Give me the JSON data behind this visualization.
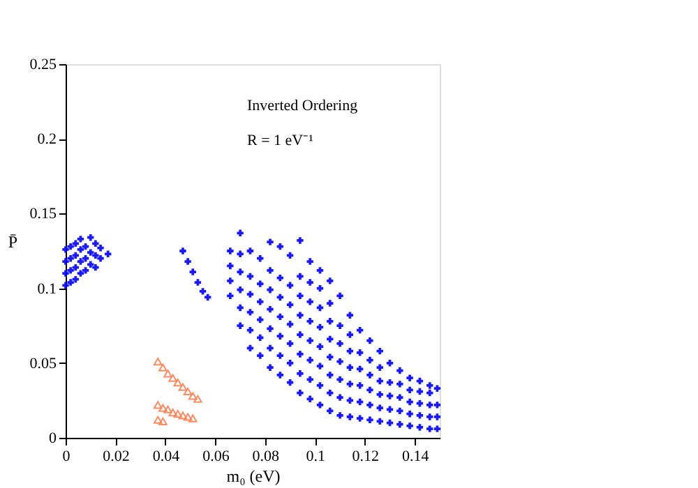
{
  "chart_data": {
    "type": "scatter",
    "xlabel": "m₀ (eV)",
    "ylabel": "P̄",
    "xlim": [
      0,
      0.15
    ],
    "ylim": [
      0,
      0.25
    ],
    "xticks": [
      0,
      0.02,
      0.04,
      0.06,
      0.08,
      0.1,
      0.12,
      0.14
    ],
    "yticks": [
      0,
      0.05,
      0.1,
      0.15,
      0.2,
      0.25
    ],
    "grid": false,
    "annotations": [
      "Inverted Ordering",
      "R = 1 eV⁻¹"
    ],
    "series": [
      {
        "color": "#0000ff",
        "marker": "cross",
        "x": [
          0,
          0,
          0,
          0,
          0.002,
          0.002,
          0.002,
          0.002,
          0.004,
          0.004,
          0.004,
          0.004,
          0.006,
          0.006,
          0.006,
          0.006,
          0.008,
          0.008,
          0.008,
          0.01,
          0.01,
          0.01,
          0.012,
          0.012,
          0.012,
          0.014,
          0.014,
          0.017,
          0.047,
          0.049,
          0.051,
          0.053,
          0.055,
          0.057,
          0.066,
          0.066,
          0.066,
          0.066,
          0.07,
          0.07,
          0.07,
          0.07,
          0.07,
          0.07,
          0.074,
          0.074,
          0.074,
          0.074,
          0.074,
          0.074,
          0.078,
          0.078,
          0.078,
          0.078,
          0.078,
          0.078,
          0.082,
          0.082,
          0.082,
          0.082,
          0.082,
          0.082,
          0.082,
          0.086,
          0.086,
          0.086,
          0.086,
          0.086,
          0.086,
          0.086,
          0.09,
          0.09,
          0.09,
          0.09,
          0.09,
          0.09,
          0.09,
          0.094,
          0.094,
          0.094,
          0.094,
          0.094,
          0.094,
          0.094,
          0.094,
          0.098,
          0.098,
          0.098,
          0.098,
          0.098,
          0.098,
          0.098,
          0.098,
          0.102,
          0.102,
          0.102,
          0.102,
          0.102,
          0.102,
          0.102,
          0.102,
          0.106,
          0.106,
          0.106,
          0.106,
          0.106,
          0.106,
          0.106,
          0.106,
          0.11,
          0.11,
          0.11,
          0.11,
          0.11,
          0.11,
          0.11,
          0.114,
          0.114,
          0.114,
          0.114,
          0.114,
          0.114,
          0.114,
          0.118,
          0.118,
          0.118,
          0.118,
          0.118,
          0.118,
          0.122,
          0.122,
          0.122,
          0.122,
          0.122,
          0.122,
          0.126,
          0.126,
          0.126,
          0.126,
          0.126,
          0.126,
          0.13,
          0.13,
          0.13,
          0.13,
          0.13,
          0.134,
          0.134,
          0.134,
          0.134,
          0.134,
          0.138,
          0.138,
          0.138,
          0.138,
          0.138,
          0.142,
          0.142,
          0.142,
          0.142,
          0.142,
          0.146,
          0.146,
          0.146,
          0.146,
          0.146,
          0.149,
          0.149,
          0.149,
          0.149
        ],
        "values": [
          0.102,
          0.11,
          0.118,
          0.126,
          0.104,
          0.112,
          0.12,
          0.128,
          0.106,
          0.114,
          0.122,
          0.13,
          0.11,
          0.118,
          0.126,
          0.133,
          0.112,
          0.12,
          0.128,
          0.116,
          0.124,
          0.134,
          0.114,
          0.122,
          0.13,
          0.12,
          0.127,
          0.123,
          0.125,
          0.118,
          0.111,
          0.104,
          0.098,
          0.094,
          0.095,
          0.105,
          0.115,
          0.125,
          0.075,
          0.087,
          0.099,
          0.111,
          0.123,
          0.137,
          0.06,
          0.072,
          0.084,
          0.096,
          0.108,
          0.125,
          0.055,
          0.067,
          0.079,
          0.091,
          0.103,
          0.12,
          0.047,
          0.06,
          0.073,
          0.086,
          0.099,
          0.112,
          0.131,
          0.042,
          0.055,
          0.068,
          0.081,
          0.094,
          0.107,
          0.128,
          0.037,
          0.05,
          0.063,
          0.076,
          0.089,
          0.102,
          0.122,
          0.03,
          0.043,
          0.056,
          0.069,
          0.082,
          0.095,
          0.108,
          0.132,
          0.026,
          0.039,
          0.052,
          0.065,
          0.078,
          0.091,
          0.104,
          0.118,
          0.022,
          0.035,
          0.048,
          0.061,
          0.074,
          0.087,
          0.1,
          0.112,
          0.018,
          0.03,
          0.042,
          0.054,
          0.066,
          0.078,
          0.09,
          0.105,
          0.015,
          0.027,
          0.039,
          0.051,
          0.063,
          0.075,
          0.095,
          0.014,
          0.025,
          0.036,
          0.047,
          0.058,
          0.069,
          0.082,
          0.013,
          0.024,
          0.035,
          0.046,
          0.057,
          0.072,
          0.012,
          0.022,
          0.032,
          0.042,
          0.052,
          0.065,
          0.011,
          0.02,
          0.029,
          0.038,
          0.047,
          0.058,
          0.01,
          0.019,
          0.028,
          0.037,
          0.05,
          0.009,
          0.018,
          0.027,
          0.036,
          0.045,
          0.008,
          0.016,
          0.024,
          0.032,
          0.04,
          0.007,
          0.015,
          0.023,
          0.031,
          0.038,
          0.006,
          0.014,
          0.022,
          0.03,
          0.035,
          0.006,
          0.014,
          0.022,
          0.033
        ]
      },
      {
        "color": "#ff7f50",
        "marker": "triangle",
        "x": [
          0.037,
          0.039,
          0.041,
          0.043,
          0.045,
          0.047,
          0.049,
          0.051,
          0.053,
          0.037,
          0.039,
          0.041,
          0.043,
          0.045,
          0.047,
          0.049,
          0.051,
          0.037,
          0.039
        ],
        "values": [
          0.051,
          0.047,
          0.043,
          0.04,
          0.037,
          0.034,
          0.031,
          0.028,
          0.026,
          0.022,
          0.02,
          0.019,
          0.017,
          0.016,
          0.015,
          0.014,
          0.013,
          0.012,
          0.011
        ]
      }
    ]
  }
}
